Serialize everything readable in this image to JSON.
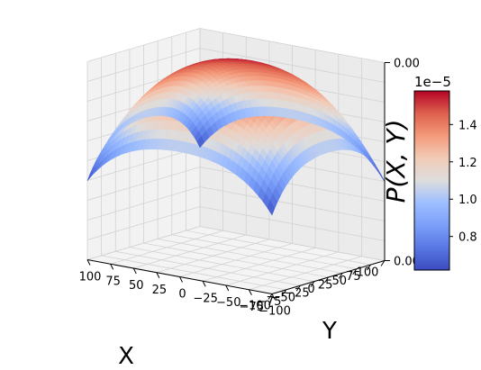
{
  "chart_data": {
    "type": "surface3d",
    "colormap": "coolwarm",
    "x": {
      "label": "X",
      "range": [
        -100,
        100
      ],
      "ticks": [
        -100,
        -75,
        -50,
        -25,
        0,
        25,
        50,
        75,
        100
      ],
      "tick_labels": [
        "−100",
        "−75",
        "−50",
        "−25",
        "0",
        "25",
        "50",
        "75",
        "100"
      ]
    },
    "y": {
      "label": "Y",
      "range": [
        -100,
        100
      ],
      "ticks": [
        -100,
        -75,
        -50,
        -25,
        0,
        25,
        50,
        75,
        100
      ],
      "tick_labels": [
        "−100",
        "−75",
        "−50",
        "−25",
        "0",
        "25",
        "50",
        "75",
        "100"
      ]
    },
    "z": {
      "range": [
        0,
        1.58e-05
      ],
      "tick_labels": [
        "0.00",
        "0.00"
      ]
    },
    "surface": {
      "peak": {
        "x": 0,
        "y": 0,
        "value": 1.58e-05
      },
      "corner_value": 6.3e-06,
      "edge_mid_value": 1e-05
    },
    "colorbar": {
      "label": "P(X, Y)",
      "offset_text": "1e−5",
      "range": [
        0.62,
        1.58
      ],
      "ticks": [
        0.8,
        1.0,
        1.2,
        1.4
      ],
      "tick_labels": [
        "0.8",
        "1.0",
        "1.2",
        "1.4"
      ]
    },
    "grid": true
  }
}
